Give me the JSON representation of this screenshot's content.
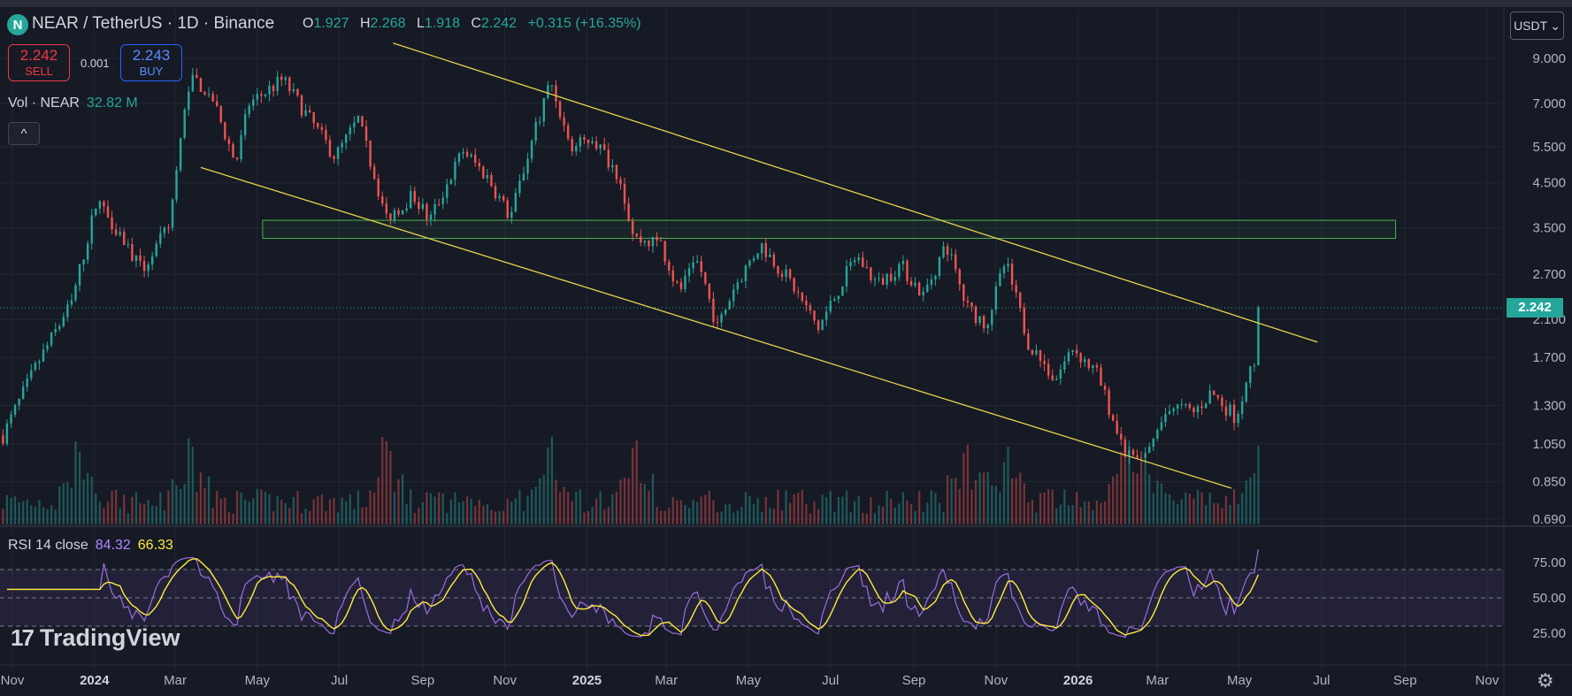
{
  "header": {
    "logo_letter": "N",
    "symbol": "NEAR / TetherUS · 1D · Binance",
    "ohlc": [
      {
        "key": "O",
        "value": "1.927"
      },
      {
        "key": "H",
        "value": "2.268"
      },
      {
        "key": "L",
        "value": "1.918"
      },
      {
        "key": "C",
        "value": "2.242"
      }
    ],
    "change": "+0.315 (+16.35%)"
  },
  "trade": {
    "sell_price": "2.242",
    "sell_label": "SELL",
    "spread": "0.001",
    "buy_price": "2.243",
    "buy_label": "BUY"
  },
  "volume_legend": {
    "label": "Vol · NEAR",
    "value": "32.82 M"
  },
  "collapse_icon": "^",
  "currency": {
    "label": "USDT",
    "chevron": "⌄"
  },
  "rsi_legend": {
    "label": "RSI 14 close",
    "rsi": "84.32",
    "ma": "66.33"
  },
  "brand": {
    "mark": "17",
    "name": "TradingView"
  },
  "settings_icon": "⚙",
  "colors": {
    "background": "#161a25",
    "up": "#26a69a",
    "down": "#ef5350",
    "trendline": "#e4d44c",
    "zone": "#4caf50",
    "rsi": "#9c6cde",
    "rsi_ma": "#ffeb3b"
  },
  "chart_data": [
    {
      "type": "candlestick",
      "symbol": "NEARUSDT",
      "interval": "1D",
      "scale": "log",
      "x_ticks": [
        "Nov",
        "2024",
        "Mar",
        "May",
        "Jul",
        "Sep",
        "Nov",
        "2025",
        "Mar",
        "May",
        "Jul",
        "Sep",
        "Nov",
        "2026",
        "Mar",
        "May",
        "Jul",
        "Sep",
        "Nov"
      ],
      "x_tick_dates": [
        "2023-11-01",
        "2024-01-01",
        "2024-03-01",
        "2024-05-01",
        "2024-07-01",
        "2024-09-01",
        "2024-11-01",
        "2025-01-01",
        "2025-03-01",
        "2025-05-01",
        "2025-07-01",
        "2025-09-01",
        "2025-11-01",
        "2026-01-01",
        "2026-03-01",
        "2026-05-01",
        "2026-07-01",
        "2026-09-01",
        "2026-11-01"
      ],
      "y_ticks": [
        "9.000",
        "7.000",
        "5.500",
        "4.500",
        "3.500",
        "2.700",
        "2.100",
        "1.700",
        "1.300",
        "1.050",
        "0.850",
        "0.690"
      ],
      "y_tick_values": [
        9.0,
        7.0,
        5.5,
        4.5,
        3.5,
        2.7,
        2.1,
        1.7,
        1.3,
        1.05,
        0.85,
        0.69
      ],
      "last_price": "2.242",
      "price_path": [
        {
          "date": "2023-10-25",
          "close": 1.1
        },
        {
          "date": "2023-11-20",
          "close": 1.65
        },
        {
          "date": "2023-12-15",
          "close": 2.3
        },
        {
          "date": "2024-01-03",
          "close": 4.1
        },
        {
          "date": "2024-01-20",
          "close": 3.4
        },
        {
          "date": "2024-02-05",
          "close": 2.75
        },
        {
          "date": "2024-02-25",
          "close": 3.5
        },
        {
          "date": "2024-03-12",
          "close": 8.2
        },
        {
          "date": "2024-03-28",
          "close": 7.3
        },
        {
          "date": "2024-04-15",
          "close": 5.0
        },
        {
          "date": "2024-04-25",
          "close": 7.0
        },
        {
          "date": "2024-05-20",
          "close": 8.0
        },
        {
          "date": "2024-06-15",
          "close": 6.0
        },
        {
          "date": "2024-06-28",
          "close": 5.2
        },
        {
          "date": "2024-07-15",
          "close": 6.4
        },
        {
          "date": "2024-08-05",
          "close": 3.7
        },
        {
          "date": "2024-08-25",
          "close": 4.2
        },
        {
          "date": "2024-09-06",
          "close": 3.65
        },
        {
          "date": "2024-10-01",
          "close": 5.4
        },
        {
          "date": "2024-10-20",
          "close": 4.6
        },
        {
          "date": "2024-11-05",
          "close": 3.7
        },
        {
          "date": "2024-11-25",
          "close": 6.3
        },
        {
          "date": "2024-12-05",
          "close": 8.0
        },
        {
          "date": "2024-12-20",
          "close": 5.4
        },
        {
          "date": "2025-01-05",
          "close": 5.8
        },
        {
          "date": "2025-01-25",
          "close": 4.7
        },
        {
          "date": "2025-02-05",
          "close": 3.3
        },
        {
          "date": "2025-02-25",
          "close": 3.2
        },
        {
          "date": "2025-03-10",
          "close": 2.45
        },
        {
          "date": "2025-03-25",
          "close": 2.9
        },
        {
          "date": "2025-04-08",
          "close": 2.0
        },
        {
          "date": "2025-04-20",
          "close": 2.5
        },
        {
          "date": "2025-05-10",
          "close": 3.2
        },
        {
          "date": "2025-06-01",
          "close": 2.6
        },
        {
          "date": "2025-06-22",
          "close": 2.0
        },
        {
          "date": "2025-07-20",
          "close": 3.0
        },
        {
          "date": "2025-08-05",
          "close": 2.55
        },
        {
          "date": "2025-08-22",
          "close": 2.85
        },
        {
          "date": "2025-09-08",
          "close": 2.4
        },
        {
          "date": "2025-09-25",
          "close": 3.2
        },
        {
          "date": "2025-10-10",
          "close": 2.25
        },
        {
          "date": "2025-10-25",
          "close": 2.05
        },
        {
          "date": "2025-11-08",
          "close": 2.9
        },
        {
          "date": "2025-11-25",
          "close": 1.85
        },
        {
          "date": "2025-12-15",
          "close": 1.5
        },
        {
          "date": "2025-12-28",
          "close": 1.8
        },
        {
          "date": "2026-01-15",
          "close": 1.55
        },
        {
          "date": "2026-02-05",
          "close": 1.0
        },
        {
          "date": "2026-02-18",
          "close": 0.95
        },
        {
          "date": "2026-03-10",
          "close": 1.3
        },
        {
          "date": "2026-03-28",
          "close": 1.25
        },
        {
          "date": "2026-04-10",
          "close": 1.4
        },
        {
          "date": "2026-04-28",
          "close": 1.22
        },
        {
          "date": "2026-05-10",
          "close": 1.6
        },
        {
          "date": "2026-05-16",
          "close": 1.927
        },
        {
          "date": "2026-05-17",
          "close": 2.242
        }
      ],
      "trendlines": [
        {
          "from": {
            "date": "2024-08-10",
            "price": 9.8
          },
          "to": {
            "date": "2026-06-28",
            "price": 1.85
          }
        },
        {
          "from": {
            "date": "2024-03-20",
            "price": 4.9
          },
          "to": {
            "date": "2026-04-25",
            "price": 0.82
          }
        }
      ],
      "zone": {
        "from_date": "2024-05-05",
        "to_date": "2026-08-25",
        "price_low": 3.3,
        "price_high": 3.65
      },
      "volume_spikes": [
        {
          "date": "2023-12-20"
        },
        {
          "date": "2024-03-12"
        },
        {
          "date": "2024-08-05"
        },
        {
          "date": "2024-12-05"
        },
        {
          "date": "2025-02-05"
        },
        {
          "date": "2025-10-10"
        },
        {
          "date": "2025-11-08"
        },
        {
          "date": "2026-02-05"
        },
        {
          "date": "2026-02-18"
        },
        {
          "date": "2026-05-17"
        }
      ]
    },
    {
      "type": "line",
      "title": "RSI 14 close",
      "y_ticks": [
        "75.00",
        "50.00",
        "25.00"
      ],
      "y_tick_values": [
        75,
        50,
        25
      ],
      "bands": [
        30,
        50,
        70
      ],
      "series": [
        {
          "name": "RSI",
          "last": 84.32
        },
        {
          "name": "MA",
          "last": 66.33
        }
      ]
    }
  ]
}
